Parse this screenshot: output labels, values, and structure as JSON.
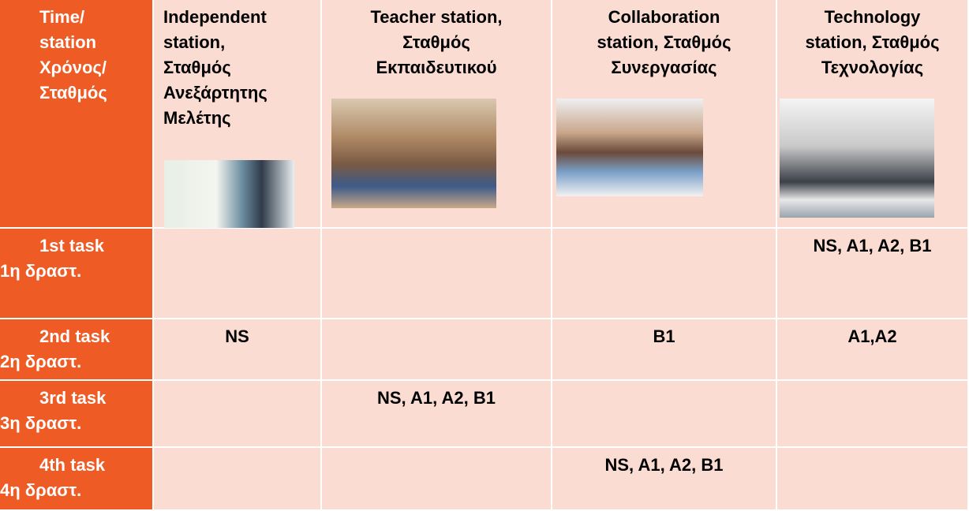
{
  "header": [
    {
      "lines": [
        "Time/",
        "station",
        "Χρόνος/",
        "Σταθμός"
      ]
    },
    {
      "lines": [
        "Independent",
        "station,",
        "Σταθμός",
        "Ανεξάρτητης",
        "Μελέτης"
      ]
    },
    {
      "lines": [
        "Teacher station,",
        "Σταθμός",
        "Εκπαιδευτικού"
      ]
    },
    {
      "lines": [
        "Collaboration",
        "station, Σταθμός",
        "Συνεργασίας"
      ]
    },
    {
      "lines": [
        "Technology",
        "station, Σταθμός",
        "Τεχνολογίας"
      ]
    }
  ],
  "rows": [
    {
      "label": [
        "1st task",
        "1η δραστ."
      ],
      "cells": [
        null,
        null,
        null,
        "NS, A1, A2, B1"
      ]
    },
    {
      "label": [
        "2nd task",
        "2η δραστ."
      ],
      "cells": [
        "NS",
        null,
        "B1",
        "A1,A2"
      ]
    },
    {
      "label": [
        "3rd task",
        "3η δραστ."
      ],
      "cells": [
        null,
        "NS, A1, A2, B1",
        null,
        null
      ]
    },
    {
      "label": [
        "4th task",
        "4η δραστ."
      ],
      "cells": [
        null,
        null,
        "NS, A1, A2, B1",
        null
      ]
    }
  ]
}
